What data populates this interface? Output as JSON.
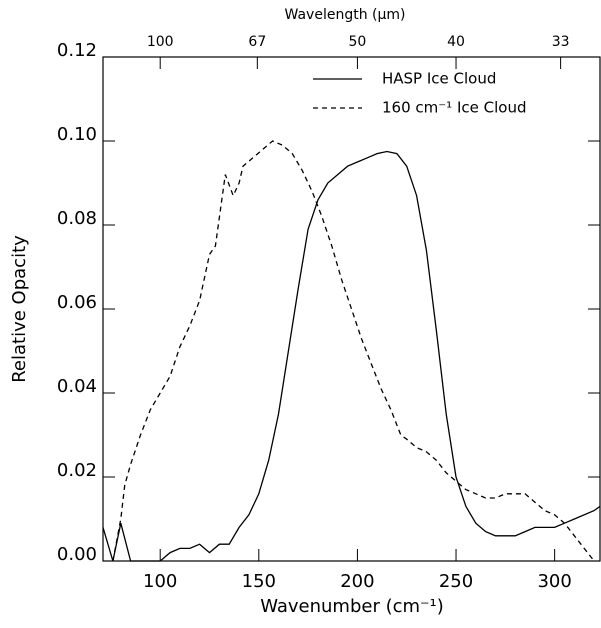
{
  "chart_data": {
    "type": "line",
    "xlabel": "Wavenumber (cm⁻¹)",
    "ylabel": "Relative Opacity",
    "x2label": "Wavelength (μm)",
    "xlim": [
      71,
      323
    ],
    "ylim": [
      0,
      0.12
    ],
    "xticks": [
      100,
      150,
      200,
      250,
      300
    ],
    "yticks": [
      {
        "value": 0,
        "label": "0.00"
      },
      {
        "value": 0.02,
        "label": "0.02"
      },
      {
        "value": 0.04,
        "label": "0.04"
      },
      {
        "value": 0.06,
        "label": "0.06"
      },
      {
        "value": 0.08,
        "label": "0.08"
      },
      {
        "value": 0.1,
        "label": "0.10"
      },
      {
        "value": 0.12,
        "label": "0.12"
      }
    ],
    "x2ticks": [
      100,
      67,
      50,
      40,
      33
    ],
    "legend": "top-right",
    "series": [
      {
        "name": "HASP Ice Cloud",
        "color": "#000000",
        "dash": "solid",
        "x": [
          71,
          76,
          80,
          85,
          90,
          100,
          105,
          110,
          115,
          120,
          125,
          130,
          135,
          140,
          145,
          150,
          155,
          160,
          165,
          170,
          175,
          180,
          185,
          190,
          195,
          200,
          205,
          210,
          215,
          220,
          225,
          230,
          235,
          240,
          245,
          250,
          255,
          260,
          265,
          270,
          280,
          285,
          290,
          300,
          305,
          310,
          320,
          323
        ],
        "values": [
          0.008,
          0,
          0.009,
          0,
          0,
          0,
          0.002,
          0.003,
          0.003,
          0.004,
          0.002,
          0.004,
          0.004,
          0.008,
          0.011,
          0.016,
          0.024,
          0.035,
          0.05,
          0.065,
          0.079,
          0.086,
          0.09,
          0.092,
          0.094,
          0.095,
          0.096,
          0.097,
          0.0975,
          0.097,
          0.094,
          0.087,
          0.074,
          0.055,
          0.035,
          0.02,
          0.013,
          0.009,
          0.007,
          0.006,
          0.006,
          0.007,
          0.008,
          0.008,
          0.009,
          0.01,
          0.012,
          0.013
        ]
      },
      {
        "name": "160 cm⁻¹ Ice Cloud",
        "color": "#000000",
        "dash": "dashed",
        "x": [
          76,
          80,
          82,
          85,
          90,
          95,
          100,
          105,
          110,
          115,
          120,
          125,
          128,
          133,
          137,
          140,
          142,
          147,
          152,
          157,
          162,
          167,
          172,
          177,
          182,
          187,
          192,
          197,
          202,
          207,
          212,
          217,
          222,
          225,
          230,
          235,
          240,
          245,
          250,
          255,
          260,
          265,
          270,
          275,
          285,
          290,
          295,
          300,
          305,
          310,
          315,
          320
        ],
        "values": [
          0,
          0.01,
          0.018,
          0.023,
          0.03,
          0.036,
          0.04,
          0.044,
          0.051,
          0.056,
          0.062,
          0.073,
          0.075,
          0.092,
          0.087,
          0.09,
          0.094,
          0.096,
          0.098,
          0.1,
          0.099,
          0.097,
          0.093,
          0.088,
          0.082,
          0.075,
          0.067,
          0.06,
          0.053,
          0.047,
          0.041,
          0.036,
          0.03,
          0.029,
          0.027,
          0.026,
          0.024,
          0.021,
          0.019,
          0.017,
          0.016,
          0.015,
          0.015,
          0.016,
          0.016,
          0.014,
          0.012,
          0.011,
          0.009,
          0.006,
          0.003,
          0
        ]
      }
    ]
  }
}
